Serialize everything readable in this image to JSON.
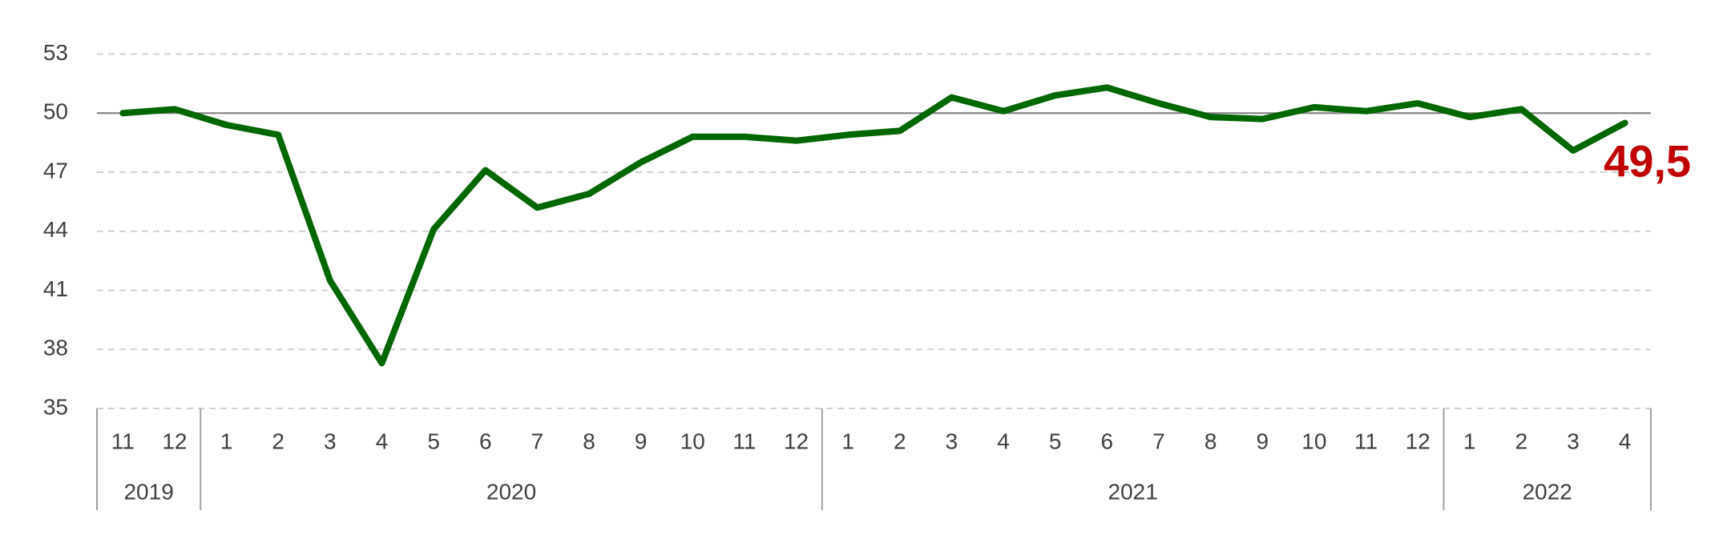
{
  "chart_data": {
    "type": "line",
    "categories": [
      "11",
      "12",
      "1",
      "2",
      "3",
      "4",
      "5",
      "6",
      "7",
      "8",
      "9",
      "10",
      "11",
      "12",
      "1",
      "2",
      "3",
      "4",
      "5",
      "6",
      "7",
      "8",
      "9",
      "10",
      "11",
      "12",
      "1",
      "2",
      "3",
      "4"
    ],
    "groups": [
      "2019",
      "2020",
      "2021",
      "2022"
    ],
    "series": [
      {
        "color": "#006600",
        "values": [
          50.0,
          50.2,
          49.4,
          48.9,
          41.5,
          37.3,
          44.1,
          47.1,
          45.2,
          45.9,
          47.5,
          48.8,
          48.8,
          48.6,
          48.9,
          49.1,
          50.8,
          50.1,
          50.9,
          51.3,
          50.5,
          49.8,
          49.7,
          50.3,
          50.1,
          50.5,
          49.8,
          50.2,
          48.1,
          49.5
        ],
        "value_labels": [
          null,
          null,
          null,
          null,
          null,
          null,
          null,
          null,
          null,
          null,
          null,
          null,
          null,
          null,
          null,
          null,
          null,
          null,
          null,
          null,
          null,
          null,
          null,
          null,
          null,
          null,
          null,
          null,
          null,
          "49,5"
        ],
        "value_label_color": "#c00000"
      }
    ],
    "ylim": [
      35,
      53
    ],
    "yticks": [
      35,
      38,
      41,
      44,
      47,
      50,
      53
    ],
    "grid": true,
    "reference_line": 50
  }
}
